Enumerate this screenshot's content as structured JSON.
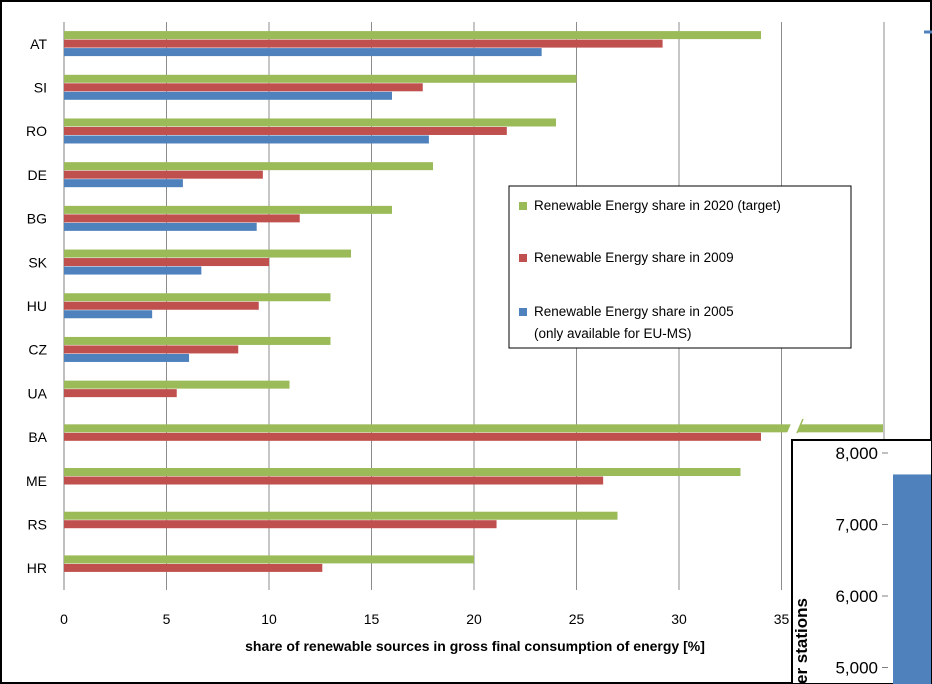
{
  "chart_data": [
    {
      "type": "bar",
      "orientation": "horizontal",
      "categories": [
        "AT",
        "SI",
        "RO",
        "DE",
        "BG",
        "SK",
        "HU",
        "CZ",
        "UA",
        "BA",
        "ME",
        "RS",
        "HR"
      ],
      "series": [
        {
          "name": "Renewable Energy share in 2020 (target)",
          "color": "#9bbb59",
          "values": [
            34,
            25,
            24,
            18,
            16,
            14,
            13,
            13,
            11,
            40,
            33,
            27,
            20
          ]
        },
        {
          "name": "Renewable Energy share in 2009",
          "color": "#c0504d",
          "values": [
            29.2,
            17.5,
            21.6,
            9.7,
            11.5,
            10,
            9.5,
            8.5,
            5.5,
            34,
            26.3,
            21.1,
            12.6
          ]
        },
        {
          "name": "Renewable Energy share in 2005",
          "name_line2": "(only available for EU-MS)",
          "color": "#4f81bd",
          "values": [
            23.3,
            16,
            17.8,
            5.8,
            9.4,
            6.7,
            4.3,
            6.1,
            null,
            null,
            null,
            null,
            null
          ]
        }
      ],
      "xlabel": "share of renewable sources in gross final consumption of energy [%]",
      "xlim": [
        0,
        40
      ],
      "xticks": [
        0,
        5,
        10,
        15,
        20,
        25,
        30,
        35
      ],
      "grid": "vertical",
      "legend_position": "center-right"
    },
    {
      "type": "bar",
      "partial": true,
      "ylabel_visible": "er stations",
      "yticks": [
        "8,000",
        "7,000",
        "6,000",
        "5,000"
      ],
      "ylim": [
        4800,
        8000
      ],
      "values": [
        7700
      ],
      "color": "#4f81bd"
    }
  ]
}
